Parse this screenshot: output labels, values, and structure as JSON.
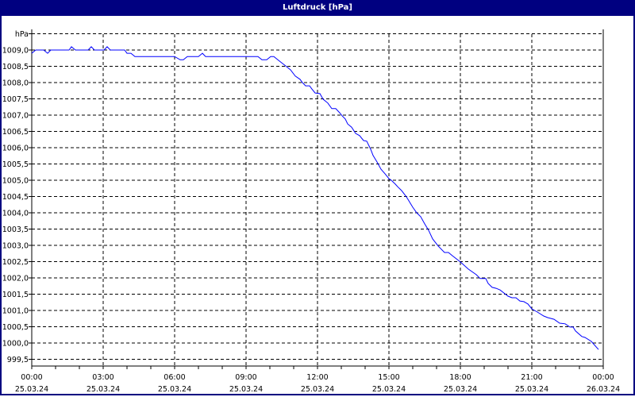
{
  "window": {
    "title": "Luftdruck [hPa]"
  },
  "chart_data": {
    "type": "line",
    "title": "Luftdruck [hPa]",
    "ylabel": "hPa",
    "xlabel": "",
    "ylim": [
      999.5,
      1009.5
    ],
    "xlim": [
      "25.03.24 00:00",
      "26.03.24 00:00"
    ],
    "grid": true,
    "line_color": "#0000ff",
    "y_ticks": [
      "hPa",
      "1009,0",
      "1008,5",
      "1008,0",
      "1007,5",
      "1007,0",
      "1006,5",
      "1006,0",
      "1005,5",
      "1005,0",
      "1004,5",
      "1004,0",
      "1003,5",
      "1003,0",
      "1002,5",
      "1002,0",
      "1001,5",
      "1001,0",
      "1000,5",
      "1000,0",
      "999,5"
    ],
    "x_ticks": [
      {
        "time": "00:00",
        "date": "25.03.24"
      },
      {
        "time": "03:00",
        "date": "25.03.24"
      },
      {
        "time": "06:00",
        "date": "25.03.24"
      },
      {
        "time": "09:00",
        "date": "25.03.24"
      },
      {
        "time": "12:00",
        "date": "25.03.24"
      },
      {
        "time": "15:00",
        "date": "25.03.24"
      },
      {
        "time": "18:00",
        "date": "25.03.24"
      },
      {
        "time": "21:00",
        "date": "25.03.24"
      },
      {
        "time": "00:00",
        "date": "26.03.24"
      }
    ],
    "series": [
      {
        "x": [
          "00:00",
          "00:10",
          "00:30",
          "00:40",
          "00:48",
          "01:34",
          "01:40",
          "01:50",
          "02:22",
          "02:30",
          "02:38",
          "03:02",
          "03:10",
          "03:18",
          "03:54",
          "04:00",
          "04:10",
          "04:20",
          "06:00",
          "06:14",
          "06:22",
          "06:32",
          "07:00",
          "07:10",
          "07:18",
          "09:30",
          "09:40",
          "09:52",
          "10:02",
          "10:10",
          "10:24",
          "10:40",
          "10:52",
          "11:04",
          "11:16",
          "11:22",
          "11:30",
          "11:40",
          "11:46",
          "11:54",
          "12:06",
          "12:14",
          "12:26",
          "12:36",
          "12:46",
          "12:56",
          "13:02",
          "13:10",
          "13:16",
          "13:26",
          "13:36",
          "13:46",
          "13:56",
          "14:04",
          "14:14",
          "14:20",
          "14:30",
          "14:40",
          "14:50",
          "15:00",
          "15:06",
          "15:16",
          "15:22",
          "15:32",
          "15:44",
          "15:50",
          "16:00",
          "16:10",
          "16:20",
          "16:30",
          "16:40",
          "16:50",
          "17:04",
          "17:20",
          "17:30",
          "17:40",
          "18:00",
          "18:20",
          "18:40",
          "18:50",
          "19:04",
          "19:10",
          "19:20",
          "19:30",
          "19:40",
          "20:00",
          "20:10",
          "20:20",
          "20:30",
          "20:40",
          "20:50",
          "21:00",
          "21:14",
          "21:30",
          "21:40",
          "21:56",
          "22:10",
          "22:24",
          "22:36",
          "22:44",
          "22:50",
          "23:06",
          "23:14",
          "23:30",
          "23:48"
        ],
        "values": [
          1008.9,
          1009.0,
          1009.0,
          1008.9,
          1009.0,
          1009.0,
          1009.1,
          1009.0,
          1009.0,
          1009.1,
          1009.0,
          1009.0,
          1009.1,
          1009.0,
          1009.0,
          1008.9,
          1008.9,
          1008.8,
          1008.8,
          1008.7,
          1008.7,
          1008.8,
          1008.8,
          1008.9,
          1008.8,
          1008.8,
          1008.7,
          1008.7,
          1008.8,
          1008.8,
          1008.66,
          1008.51,
          1008.39,
          1008.2,
          1008.1,
          1008.0,
          1007.9,
          1007.9,
          1007.8,
          1007.68,
          1007.66,
          1007.49,
          1007.37,
          1007.2,
          1007.2,
          1007.07,
          1006.98,
          1006.88,
          1006.73,
          1006.63,
          1006.44,
          1006.37,
          1006.22,
          1006.2,
          1005.95,
          1005.76,
          1005.56,
          1005.34,
          1005.2,
          1005.05,
          1005.0,
          1004.88,
          1004.8,
          1004.68,
          1004.49,
          1004.37,
          1004.17,
          1004.0,
          1003.88,
          1003.66,
          1003.46,
          1003.2,
          1002.98,
          1002.78,
          1002.78,
          1002.68,
          1002.49,
          1002.27,
          1002.1,
          1001.98,
          1001.98,
          1001.83,
          1001.71,
          1001.68,
          1001.63,
          1001.44,
          1001.39,
          1001.39,
          1001.29,
          1001.27,
          1001.2,
          1001.05,
          1000.95,
          1000.83,
          1000.78,
          1000.73,
          1000.61,
          1000.59,
          1000.49,
          1000.49,
          1000.37,
          1000.2,
          1000.17,
          1000.05,
          999.8
        ]
      }
    ]
  }
}
